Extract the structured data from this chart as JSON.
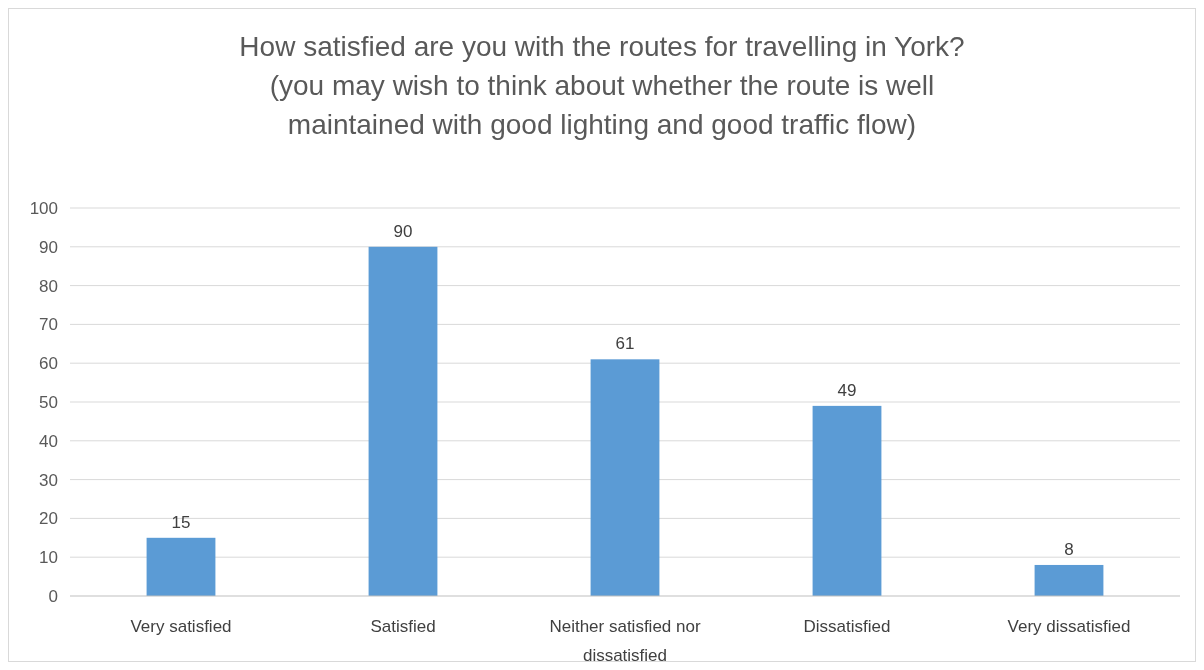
{
  "chart_data": {
    "type": "bar",
    "title": "How satisfied are you with the routes for travelling in York?",
    "subtitle": "(you may wish to think about whether the route is well maintained with good lighting and good traffic flow)",
    "categories": [
      "Very satisfied",
      "Satisfied",
      "Neither satisfied nor dissatisfied",
      "Dissatisfied",
      "Very dissatisfied"
    ],
    "values": [
      15,
      90,
      61,
      49,
      8
    ],
    "color": "#5b9bd5",
    "ylim": [
      0,
      100
    ],
    "yticks": [
      0,
      10,
      20,
      30,
      40,
      50,
      60,
      70,
      80,
      90,
      100
    ],
    "grid": "y",
    "data_labels": true
  }
}
